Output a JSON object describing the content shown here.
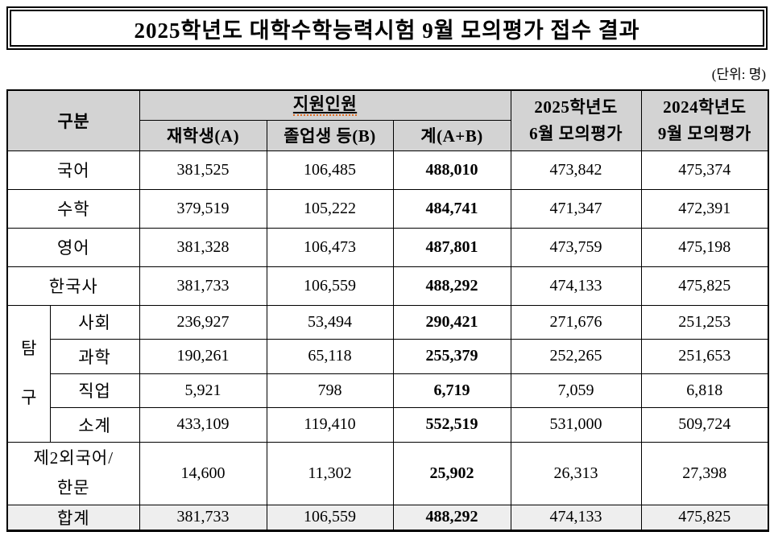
{
  "title": "2025학년도 대학수학능력시험 9월 모의평가 접수 결과",
  "unit_note": "(단위: 명)",
  "colors": {
    "header_bg": "#d3d3d3",
    "total_row_bg": "#eeeeee",
    "border_color": "#000000",
    "squiggle_color": "#e06a1f"
  },
  "table": {
    "header": {
      "category": "구분",
      "applicants_group": "지원인원",
      "sub_columns": [
        "재학생(A)",
        "졸업생 등(B)",
        "계(A+B)"
      ],
      "col_2025": {
        "line1": "2025학년도",
        "line2": "6월 모의평가"
      },
      "col_2024": {
        "line1": "2024학년도",
        "line2": "9월 모의평가"
      }
    },
    "rows": [
      {
        "label": "국어",
        "values": [
          "381,525",
          "106,485",
          "488,010",
          "473,842",
          "475,374"
        ]
      },
      {
        "label": "수학",
        "values": [
          "379,519",
          "105,222",
          "484,741",
          "471,347",
          "472,391"
        ]
      },
      {
        "label": "영어",
        "values": [
          "381,328",
          "106,473",
          "487,801",
          "473,759",
          "475,198"
        ]
      },
      {
        "label": "한국사",
        "values": [
          "381,733",
          "106,559",
          "488,292",
          "474,133",
          "475,825"
        ]
      },
      {
        "group": "탐구",
        "group_start": true,
        "group_rows": 4,
        "label": "사회",
        "values": [
          "236,927",
          "53,494",
          "290,421",
          "271,676",
          "251,253"
        ]
      },
      {
        "group": "탐구",
        "label": "과학",
        "values": [
          "190,261",
          "65,118",
          "255,379",
          "252,265",
          "251,653"
        ]
      },
      {
        "group": "탐구",
        "label": "직업",
        "values": [
          "5,921",
          "798",
          "6,719",
          "7,059",
          "6,818"
        ]
      },
      {
        "group": "탐구",
        "label": "소계",
        "values": [
          "433,109",
          "119,410",
          "552,519",
          "531,000",
          "509,724"
        ]
      },
      {
        "label": "제2외국어/\n한문",
        "values": [
          "14,600",
          "11,302",
          "25,902",
          "26,313",
          "27,398"
        ]
      },
      {
        "label": "합계",
        "total": true,
        "values": [
          "381,733",
          "106,559",
          "488,292",
          "474,133",
          "475,825"
        ]
      }
    ]
  }
}
